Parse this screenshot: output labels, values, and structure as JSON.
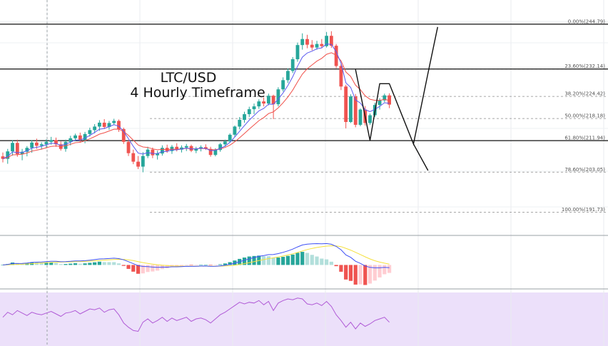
{
  "chart_data": {
    "type": "candlestick",
    "title_line1": "LTC/USD",
    "title_line2": "4 Hourly Timeframe",
    "colors": {
      "up": "#26a69a",
      "down": "#ef5350",
      "ma_fast": "#5b5bf0",
      "ma_slow": "#f0504a",
      "macd": "#3f51f5",
      "signal": "#f5e03c",
      "hist_up_strong": "#26a69a",
      "hist_up_weak": "#b2dfdb",
      "hist_down_strong": "#ef5350",
      "hist_down_weak": "#ffcdd2",
      "rsi_line": "#b05ad6",
      "rsi_band": "#ece0fa"
    },
    "ohlc": [
      [
        207.5,
        208.6,
        205.8,
        206.8
      ],
      [
        206.8,
        209.6,
        205.4,
        208.9
      ],
      [
        208.9,
        212.1,
        207.7,
        211.3
      ],
      [
        211.3,
        212.2,
        207.4,
        208.1
      ],
      [
        208.1,
        209.6,
        206.4,
        208.8
      ],
      [
        208.8,
        210.4,
        207.5,
        209.9
      ],
      [
        209.9,
        212.1,
        208.5,
        211.4
      ],
      [
        211.4,
        212.5,
        209.6,
        210.5
      ],
      [
        210.5,
        211.5,
        209.4,
        210.9
      ],
      [
        210.9,
        212.3,
        209.8,
        211.6
      ],
      [
        211.6,
        213.0,
        210.8,
        212.1
      ],
      [
        212.1,
        212.8,
        210.2,
        210.9
      ],
      [
        210.9,
        211.7,
        209.1,
        209.6
      ],
      [
        209.6,
        212.2,
        208.8,
        211.6
      ],
      [
        211.6,
        213.3,
        210.6,
        212.6
      ],
      [
        212.6,
        213.9,
        211.8,
        213.4
      ],
      [
        213.4,
        214.2,
        211.5,
        212.0
      ],
      [
        212.0,
        214.4,
        211.2,
        213.8
      ],
      [
        213.8,
        215.6,
        213.1,
        214.9
      ],
      [
        214.9,
        216.6,
        214.0,
        215.9
      ],
      [
        215.9,
        217.7,
        214.7,
        217.0
      ],
      [
        217.0,
        218.0,
        215.2,
        215.8
      ],
      [
        215.8,
        217.5,
        215.0,
        216.9
      ],
      [
        216.9,
        218.1,
        216.3,
        217.5
      ],
      [
        217.5,
        217.9,
        214.4,
        215.2
      ],
      [
        215.2,
        215.6,
        211.0,
        211.6
      ],
      [
        211.6,
        212.0,
        207.6,
        208.4
      ],
      [
        208.4,
        209.4,
        205.3,
        206.0
      ],
      [
        206.0,
        207.6,
        203.9,
        204.6
      ],
      [
        204.6,
        208.7,
        203.0,
        207.6
      ],
      [
        207.6,
        210.2,
        207.0,
        209.4
      ],
      [
        209.4,
        210.0,
        207.0,
        207.8
      ],
      [
        207.8,
        209.1,
        206.6,
        208.3
      ],
      [
        208.3,
        210.6,
        207.7,
        209.9
      ],
      [
        209.9,
        210.8,
        208.5,
        209.0
      ],
      [
        209.0,
        210.7,
        208.2,
        210.2
      ],
      [
        210.2,
        211.2,
        208.9,
        209.4
      ],
      [
        209.4,
        210.6,
        208.6,
        210.0
      ],
      [
        210.0,
        211.0,
        209.0,
        210.4
      ],
      [
        210.4,
        210.8,
        208.7,
        209.1
      ],
      [
        209.1,
        210.2,
        208.4,
        209.7
      ],
      [
        209.7,
        210.6,
        208.9,
        210.1
      ],
      [
        210.1,
        210.9,
        209.3,
        209.6
      ],
      [
        209.6,
        210.2,
        207.4,
        207.9
      ],
      [
        207.9,
        209.8,
        207.5,
        209.3
      ],
      [
        209.3,
        211.3,
        208.8,
        210.9
      ],
      [
        210.9,
        212.2,
        210.2,
        211.7
      ],
      [
        211.7,
        214.0,
        211.3,
        213.6
      ],
      [
        213.6,
        216.2,
        213.0,
        215.9
      ],
      [
        215.9,
        218.6,
        215.1,
        217.8
      ],
      [
        217.8,
        220.1,
        217.0,
        219.4
      ],
      [
        219.4,
        221.5,
        218.6,
        220.8
      ],
      [
        220.8,
        222.4,
        219.4,
        221.6
      ],
      [
        221.6,
        223.6,
        220.9,
        223.0
      ],
      [
        223.0,
        224.1,
        221.6,
        222.4
      ],
      [
        222.4,
        225.2,
        221.9,
        224.6
      ],
      [
        224.6,
        224.9,
        218.0,
        222.2
      ],
      [
        222.2,
        227.0,
        221.6,
        226.4
      ],
      [
        226.4,
        229.8,
        225.8,
        229.0
      ],
      [
        229.0,
        232.3,
        228.2,
        231.6
      ],
      [
        231.6,
        235.5,
        231.0,
        234.9
      ],
      [
        234.9,
        239.6,
        234.2,
        238.9
      ],
      [
        238.9,
        242.2,
        237.6,
        240.6
      ],
      [
        240.6,
        241.8,
        238.0,
        239.0
      ],
      [
        239.0,
        240.3,
        237.4,
        238.2
      ],
      [
        238.2,
        240.1,
        237.6,
        239.2
      ],
      [
        239.2,
        240.6,
        238.0,
        238.6
      ],
      [
        238.6,
        242.6,
        238.2,
        241.5
      ],
      [
        241.5,
        242.8,
        238.1,
        238.7
      ],
      [
        238.7,
        239.2,
        232.4,
        233.0
      ],
      [
        233.0,
        233.6,
        226.2,
        227.2
      ],
      [
        227.2,
        227.7,
        215.4,
        217.2
      ],
      [
        217.2,
        225.0,
        216.9,
        224.4
      ],
      [
        224.4,
        225.1,
        215.7,
        216.4
      ],
      [
        216.4,
        221.0,
        216.0,
        220.7
      ],
      [
        220.7,
        221.7,
        216.2,
        216.9
      ],
      [
        216.9,
        219.6,
        216.4,
        219.1
      ],
      [
        219.1,
        222.6,
        218.6,
        222.0
      ],
      [
        222.0,
        223.9,
        220.7,
        223.3
      ],
      [
        223.3,
        225.2,
        222.8,
        224.7
      ],
      [
        224.7,
        225.3,
        221.1,
        222.1
      ]
    ],
    "fib_levels": [
      {
        "label": "0.00%(244.79)",
        "value": 244.79
      },
      {
        "label": "23.60%(232.14)",
        "value": 232.14
      },
      {
        "label": "38.20%(224.42)",
        "value": 224.42
      },
      {
        "label": "50.00%(218.18)",
        "value": 218.18
      },
      {
        "label": "61.80%(211.94)",
        "value": 211.94
      },
      {
        "label": "78.60%(203.05)",
        "value": 203.05
      },
      {
        "label": "100.00%(191.73)",
        "value": 191.73
      }
    ],
    "horizontal_lines": [
      244.79,
      232.14,
      211.94
    ],
    "projection_path": [
      [
        73,
        232.0
      ],
      [
        76,
        212.0
      ],
      [
        78,
        228.0
      ],
      [
        80,
        228.0
      ],
      [
        85,
        211.0
      ],
      [
        88,
        231.0
      ],
      [
        90,
        244.0
      ]
    ],
    "projection_path_2": [
      [
        85,
        211.0
      ],
      [
        88,
        203.5
      ]
    ],
    "y_range": [
      186,
      250
    ],
    "macd_range": [
      -1.8,
      2.2
    ],
    "rsi_range": [
      20,
      80
    ],
    "rsi": [
      52,
      58,
      55,
      60,
      57,
      54,
      58,
      56,
      55,
      57,
      59,
      56,
      53,
      57,
      58,
      60,
      56,
      59,
      62,
      61,
      63,
      58,
      61,
      62,
      55,
      45,
      40,
      36,
      35,
      46,
      50,
      45,
      48,
      52,
      47,
      51,
      48,
      50,
      52,
      47,
      50,
      51,
      49,
      45,
      50,
      55,
      58,
      62,
      66,
      70,
      68,
      70,
      69,
      72,
      67,
      71,
      60,
      69,
      72,
      74,
      73,
      75,
      74,
      68,
      67,
      69,
      66,
      71,
      65,
      55,
      48,
      40,
      46,
      38,
      45,
      41,
      44,
      48,
      50,
      52,
      46
    ]
  }
}
